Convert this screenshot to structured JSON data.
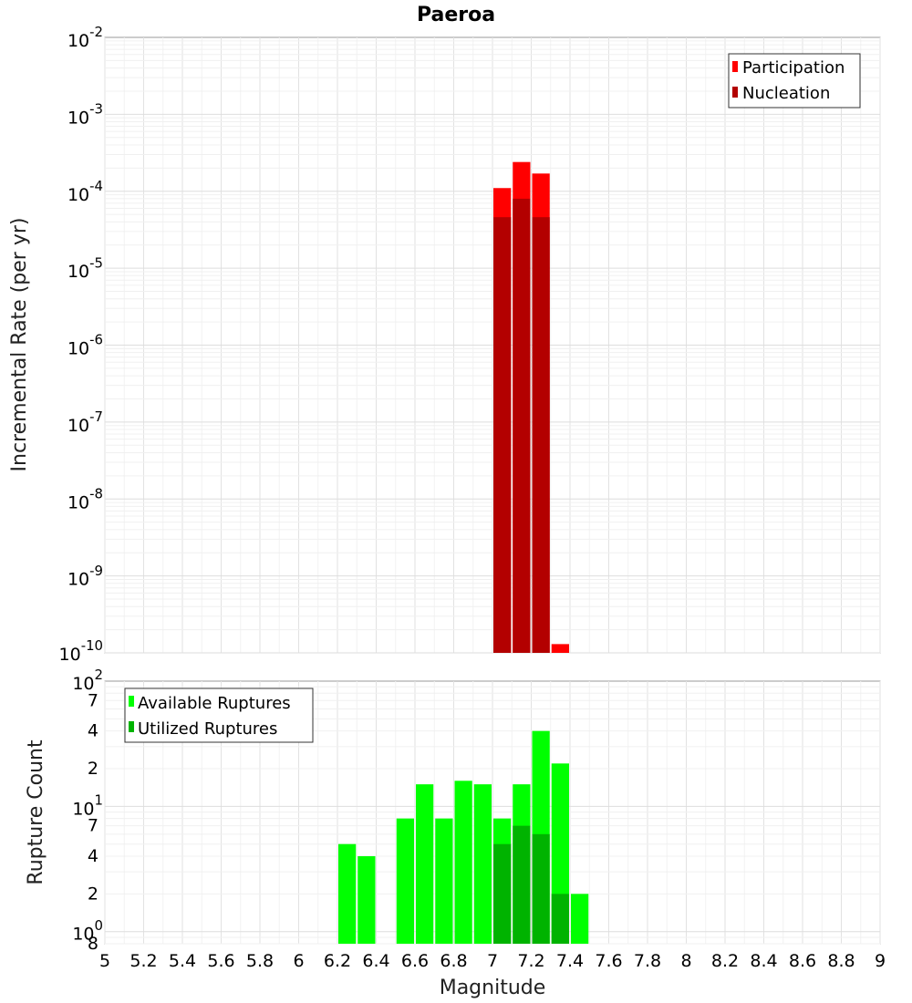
{
  "chart_data": [
    {
      "type": "bar",
      "title": "Paeroa",
      "xlabel": "",
      "ylabel": "Incremental Rate (per yr)",
      "xlim": [
        5,
        9
      ],
      "ylim": [
        1e-10,
        0.01
      ],
      "yscale": "log",
      "grid": true,
      "legend_position": "top-right",
      "series": [
        {
          "name": "Participation",
          "color": "#ff0000",
          "x": [
            7.05,
            7.15,
            7.25,
            7.35
          ],
          "values": [
            0.00011,
            0.00024,
            0.00017,
            1.3e-10
          ]
        },
        {
          "name": "Nucleation",
          "color": "#b30000",
          "x": [
            7.05,
            7.15,
            7.25
          ],
          "values": [
            4.6e-05,
            8e-05,
            4.6e-05
          ]
        }
      ],
      "y_ticks": [
        {
          "base": "10",
          "exp": "-2"
        },
        {
          "base": "10",
          "exp": "-3"
        },
        {
          "base": "10",
          "exp": "-4"
        },
        {
          "base": "10",
          "exp": "-5"
        },
        {
          "base": "10",
          "exp": "-6"
        },
        {
          "base": "10",
          "exp": "-7"
        },
        {
          "base": "10",
          "exp": "-8"
        },
        {
          "base": "10",
          "exp": "-9"
        },
        {
          "base": "10",
          "exp": "-10"
        }
      ]
    },
    {
      "type": "bar",
      "title": "",
      "xlabel": "Magnitude",
      "ylabel": "Rupture Count",
      "xlim": [
        5,
        9
      ],
      "ylim": [
        0.8,
        100
      ],
      "yscale": "log",
      "grid": true,
      "legend_position": "top-left",
      "series": [
        {
          "name": "Available Ruptures",
          "color": "#00ff00",
          "x": [
            6.25,
            6.35,
            6.55,
            6.65,
            6.75,
            6.85,
            6.95,
            7.05,
            7.15,
            7.25,
            7.35,
            7.45
          ],
          "values": [
            5,
            4,
            8,
            15,
            8,
            16,
            15,
            8,
            15,
            40,
            22,
            2
          ]
        },
        {
          "name": "Utilized Ruptures",
          "color": "#00b300",
          "x": [
            7.05,
            7.15,
            7.25,
            7.35
          ],
          "values": [
            5,
            7,
            6,
            2
          ]
        }
      ],
      "y_ticks": [
        {
          "label": "8",
          "base": "",
          "exp": ""
        },
        {
          "label": "",
          "base": "10",
          "exp": "0"
        },
        {
          "label": "2",
          "base": "",
          "exp": ""
        },
        {
          "label": "4",
          "base": "",
          "exp": ""
        },
        {
          "label": "7",
          "base": "",
          "exp": ""
        },
        {
          "label": "",
          "base": "10",
          "exp": "1"
        },
        {
          "label": "2",
          "base": "",
          "exp": ""
        },
        {
          "label": "4",
          "base": "",
          "exp": ""
        },
        {
          "label": "7",
          "base": "",
          "exp": ""
        },
        {
          "label": "",
          "base": "10",
          "exp": "2"
        }
      ],
      "x_ticks": [
        "5",
        "5.2",
        "5.4",
        "5.6",
        "5.8",
        "6",
        "6.2",
        "6.4",
        "6.6",
        "6.8",
        "7",
        "7.2",
        "7.4",
        "7.6",
        "7.8",
        "8",
        "8.2",
        "8.4",
        "8.6",
        "8.8",
        "9"
      ]
    }
  ]
}
